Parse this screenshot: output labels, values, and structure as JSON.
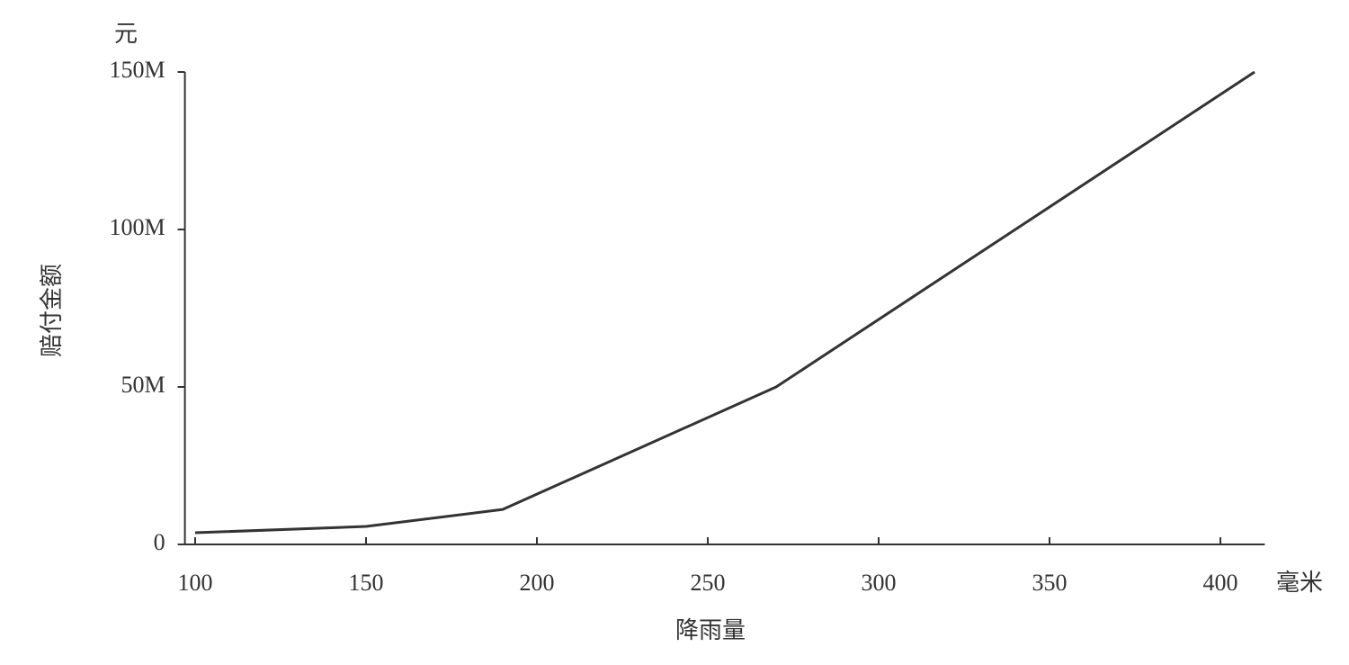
{
  "chart_data": {
    "type": "line",
    "x_label": "降雨量",
    "y_label": "赔付金额",
    "x_unit": "毫米",
    "y_unit": "元",
    "x": [
      100,
      150,
      190,
      270,
      410
    ],
    "values": [
      3700000,
      5700000,
      11100000,
      50000000,
      150000000
    ],
    "color": "#333333",
    "xlim": [
      97,
      413
    ],
    "ylim": [
      0,
      150000000
    ],
    "xticks": [
      100,
      150,
      200,
      250,
      300,
      350,
      400
    ],
    "yticks": [
      0,
      {
        "value": 50000000,
        "label": "50M"
      },
      {
        "value": 100000000,
        "label": "100M"
      },
      {
        "value": 150000000,
        "label": "150M"
      }
    ]
  }
}
